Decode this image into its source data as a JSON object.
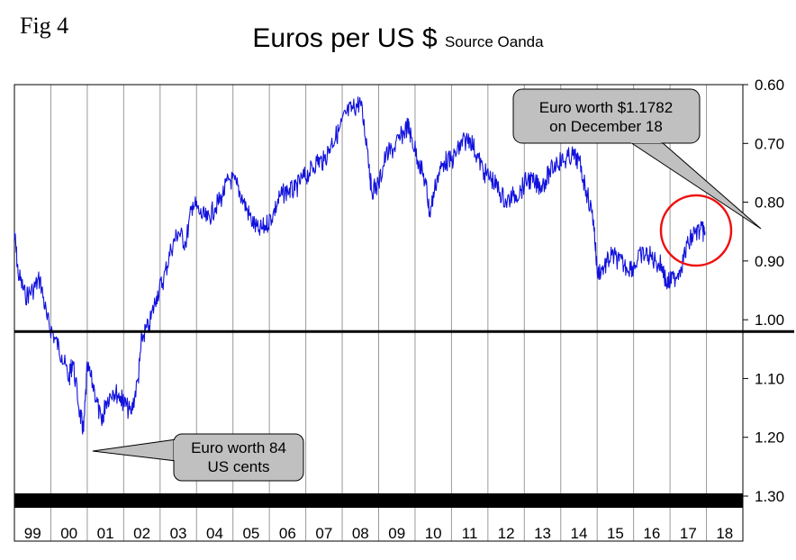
{
  "figure_label": "Fig 4",
  "chart_data": {
    "type": "line",
    "title": "Euros per US $",
    "subtitle": "Source Oanda",
    "x_ticks": [
      "99",
      "00",
      "01",
      "02",
      "03",
      "04",
      "05",
      "06",
      "07",
      "08",
      "09",
      "10",
      "11",
      "12",
      "13",
      "14",
      "15",
      "16",
      "17",
      "18"
    ],
    "y_ticks": [
      "0.60",
      "0.70",
      "0.80",
      "0.90",
      "1.00",
      "1.10",
      "1.20",
      "1.30"
    ],
    "ylim": [
      1.3,
      0.6
    ],
    "y_inverted": true,
    "grid": "vertical",
    "reference_line": 1.02,
    "series": [
      {
        "color": "#1111dd",
        "x": [
          1999.0,
          1999.1,
          1999.3,
          1999.5,
          1999.7,
          1999.9,
          2000.1,
          2000.3,
          2000.5,
          2000.6,
          2000.8,
          2000.9,
          2001.0,
          2001.2,
          2001.4,
          2001.5,
          2001.7,
          2001.9,
          2002.0,
          2002.2,
          2002.4,
          2002.5,
          2002.7,
          2002.9,
          2003.1,
          2003.3,
          2003.5,
          2003.7,
          2003.9,
          2004.1,
          2004.3,
          2004.5,
          2004.7,
          2004.9,
          2005.1,
          2005.3,
          2005.5,
          2005.7,
          2005.9,
          2006.1,
          2006.3,
          2006.5,
          2006.7,
          2006.9,
          2007.1,
          2007.3,
          2007.5,
          2007.7,
          2007.9,
          2008.1,
          2008.3,
          2008.5,
          2008.7,
          2008.8,
          2009.0,
          2009.2,
          2009.4,
          2009.6,
          2009.8,
          2009.9,
          2010.1,
          2010.3,
          2010.4,
          2010.6,
          2010.8,
          2011.0,
          2011.2,
          2011.3,
          2011.5,
          2011.7,
          2011.9,
          2012.1,
          2012.3,
          2012.5,
          2012.7,
          2012.9,
          2013.1,
          2013.3,
          2013.5,
          2013.7,
          2013.9,
          2014.1,
          2014.3,
          2014.5,
          2014.7,
          2014.9,
          2015.0,
          2015.2,
          2015.4,
          2015.6,
          2015.8,
          2016.0,
          2016.2,
          2016.4,
          2016.6,
          2016.8,
          2016.9,
          2017.1,
          2017.3,
          2017.5,
          2017.7,
          2017.9,
          2017.96
        ],
        "values": [
          0.85,
          0.92,
          0.96,
          0.95,
          0.93,
          1.0,
          1.03,
          1.06,
          1.1,
          1.07,
          1.16,
          1.19,
          1.08,
          1.12,
          1.18,
          1.14,
          1.12,
          1.13,
          1.14,
          1.16,
          1.1,
          1.03,
          1.01,
          0.96,
          0.93,
          0.88,
          0.85,
          0.87,
          0.8,
          0.82,
          0.83,
          0.81,
          0.79,
          0.76,
          0.77,
          0.8,
          0.83,
          0.85,
          0.84,
          0.82,
          0.79,
          0.78,
          0.78,
          0.76,
          0.75,
          0.73,
          0.73,
          0.7,
          0.68,
          0.65,
          0.64,
          0.63,
          0.71,
          0.78,
          0.77,
          0.72,
          0.71,
          0.69,
          0.67,
          0.69,
          0.73,
          0.77,
          0.82,
          0.76,
          0.73,
          0.73,
          0.71,
          0.7,
          0.69,
          0.72,
          0.75,
          0.76,
          0.78,
          0.8,
          0.79,
          0.78,
          0.76,
          0.77,
          0.77,
          0.75,
          0.73,
          0.73,
          0.72,
          0.73,
          0.78,
          0.83,
          0.92,
          0.91,
          0.89,
          0.9,
          0.91,
          0.91,
          0.89,
          0.89,
          0.9,
          0.91,
          0.94,
          0.93,
          0.91,
          0.87,
          0.85,
          0.85,
          0.85
        ]
      }
    ],
    "annotations": [
      {
        "lines": [
          "Euro worth $1.1782",
          "on December 18"
        ]
      },
      {
        "lines": [
          "Euro worth 84",
          "US cents"
        ]
      }
    ]
  }
}
